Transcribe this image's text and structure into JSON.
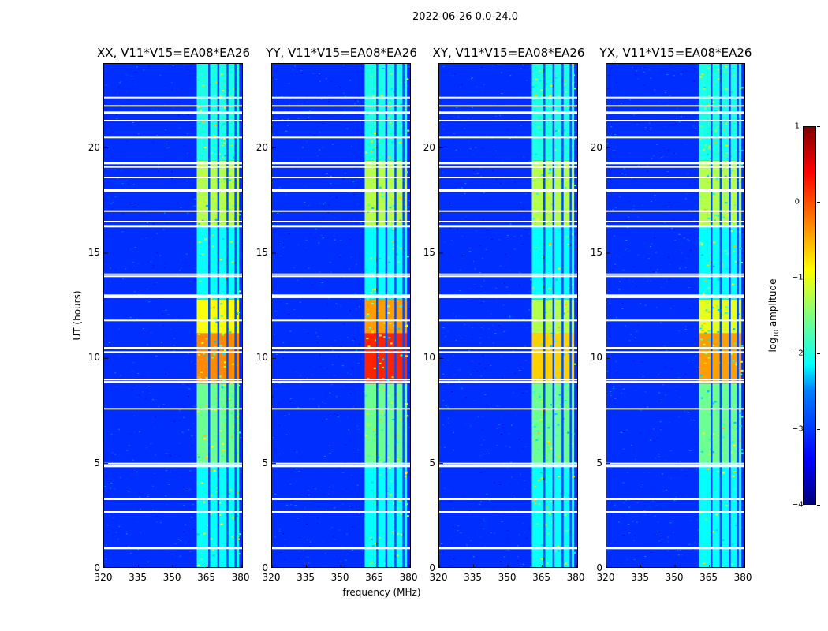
{
  "chart_data": {
    "type": "heatmap",
    "suptitle": "2022-06-26 0.0-24.0",
    "panels": [
      {
        "title": "XX, V11*V15=EA08*EA26",
        "band_strength": 0.62
      },
      {
        "title": "YY, V11*V15=EA08*EA26",
        "band_strength": 0.72
      },
      {
        "title": "XY, V11*V15=EA08*EA26",
        "band_strength": 0.55
      },
      {
        "title": "YX, V11*V15=EA08*EA26",
        "band_strength": 0.6
      }
    ],
    "xlabel": "frequency (MHz)",
    "ylabel": "UT (hours)",
    "xlim": [
      320,
      381
    ],
    "ylim": [
      0,
      24
    ],
    "xticks": [
      320,
      335,
      350,
      365,
      380
    ],
    "xtick_labels": [
      "320",
      "335",
      "350",
      "365",
      "380"
    ],
    "yticks": [
      0,
      5,
      10,
      15,
      20
    ],
    "ytick_labels": [
      "0",
      "5",
      "10",
      "15",
      "20"
    ],
    "rfi_band_mhz": [
      360.5,
      379
    ],
    "rfi_channel_gaps_mhz": [
      365.5,
      369.5,
      373.5,
      377
    ],
    "flagged_rows_hours": [
      1.0,
      2.7,
      3.3,
      4.9,
      5.0,
      7.6,
      8.9,
      9.0,
      10.3,
      10.5,
      11.8,
      12.9,
      13.0,
      13.9,
      14.0,
      16.3,
      16.5,
      17.0,
      18.0,
      18.6,
      19.1,
      19.3,
      20.5,
      21.3,
      21.7,
      22.0,
      22.4
    ],
    "colorbar": {
      "label": "log10 amplitude",
      "min": -4,
      "max": 1,
      "ticks": [
        -4,
        -3,
        -2,
        -1,
        0,
        1
      ],
      "tick_labels": [
        "−4",
        "−3",
        "−2",
        "−1",
        "0",
        "1"
      ],
      "colormap": "jet"
    }
  }
}
